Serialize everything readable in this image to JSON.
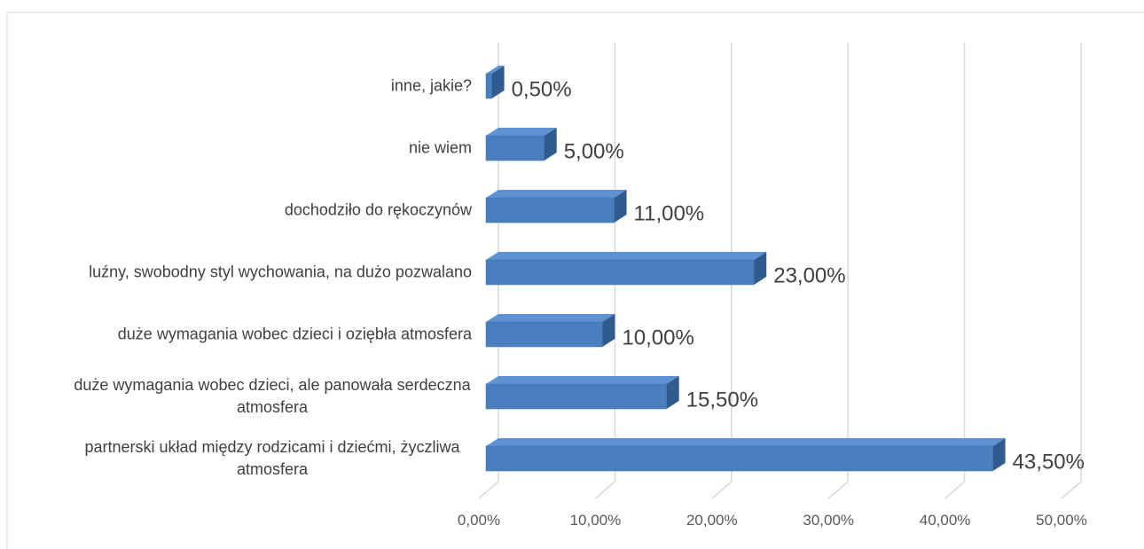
{
  "chart_data": {
    "type": "bar",
    "orientation": "horizontal",
    "three_d": true,
    "categories": [
      "partnerski układ między rodzicami i dziećmi, życzliwa atmosfera",
      "duże wymagania wobec dzieci, ale panowała serdeczna atmosfera",
      "duże wymagania wobec dzieci i oziębła atmosfera",
      "luźny, swobodny styl wychowania, na dużo pozwalano",
      "dochodziło do rękoczynów",
      "nie wiem",
      "inne, jakie?"
    ],
    "values": [
      43.5,
      15.5,
      10,
      23,
      11,
      5,
      0.5
    ],
    "value_labels": [
      "43,50%",
      "15,50%",
      "10,00%",
      "23,00%",
      "11,00%",
      "5,00%",
      "0,50%"
    ],
    "color": "#4a7ebf",
    "xlim": [
      0,
      50
    ],
    "xticks": [
      {
        "value": 0,
        "label": "0,00%"
      },
      {
        "value": 10,
        "label": "10,00%"
      },
      {
        "value": 20,
        "label": "20,00%"
      },
      {
        "value": 30,
        "label": "30,00%"
      },
      {
        "value": 40,
        "label": "40,00%"
      },
      {
        "value": 50,
        "label": "50,00%"
      }
    ],
    "grid": true
  }
}
